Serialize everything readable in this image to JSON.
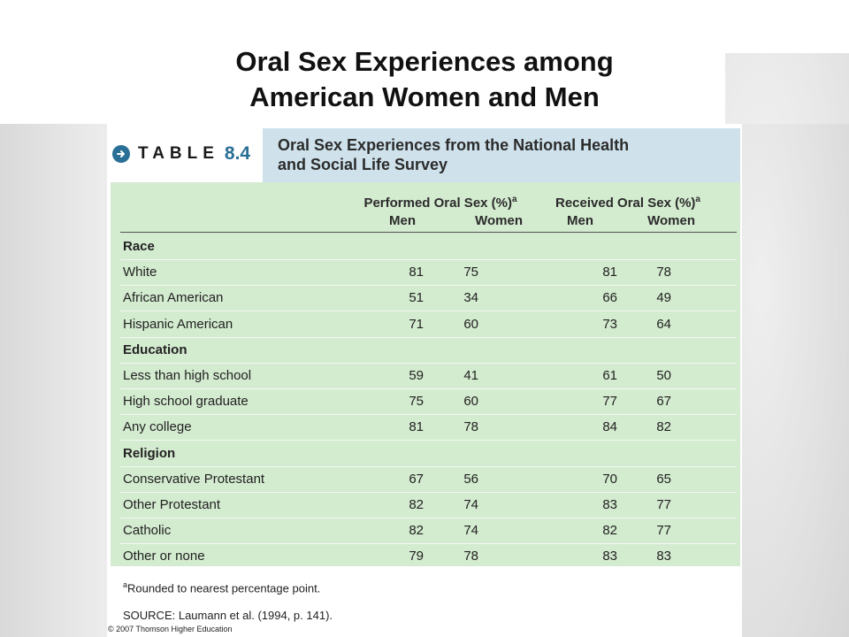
{
  "slide": {
    "title_line1": "Oral Sex Experiences among",
    "title_line2": "American Women and Men"
  },
  "table": {
    "label_word": "TABLE",
    "label_number": "8.4",
    "title_line1": "Oral Sex Experiences from the National Health",
    "title_line2": "and Social Life Survey",
    "groups": [
      {
        "label": "Performed Oral Sex (%)",
        "superscript": "a",
        "sub": [
          "Men",
          "Women"
        ]
      },
      {
        "label": "Received Oral Sex (%)",
        "superscript": "a",
        "sub": [
          "Men",
          "Women"
        ]
      }
    ],
    "rows": [
      {
        "label": "Race",
        "section": true
      },
      {
        "label": "White",
        "values": [
          "81",
          "75",
          "81",
          "78"
        ]
      },
      {
        "label": "African American",
        "values": [
          "51",
          "34",
          "66",
          "49"
        ]
      },
      {
        "label": "Hispanic American",
        "values": [
          "71",
          "60",
          "73",
          "64"
        ]
      },
      {
        "label": "Education",
        "section": true
      },
      {
        "label": "Less than high school",
        "values": [
          "59",
          "41",
          "61",
          "50"
        ]
      },
      {
        "label": "High school graduate",
        "values": [
          "75",
          "60",
          "77",
          "67"
        ]
      },
      {
        "label": "Any college",
        "values": [
          "81",
          "78",
          "84",
          "82"
        ]
      },
      {
        "label": "Religion",
        "section": true
      },
      {
        "label": "Conservative Protestant",
        "values": [
          "67",
          "56",
          "70",
          "65"
        ]
      },
      {
        "label": "Other Protestant",
        "values": [
          "82",
          "74",
          "83",
          "77"
        ]
      },
      {
        "label": "Catholic",
        "values": [
          "82",
          "74",
          "82",
          "77"
        ]
      },
      {
        "label": "Other or none",
        "values": [
          "79",
          "78",
          "83",
          "83"
        ]
      }
    ],
    "footnote_mark": "a",
    "footnote_text": "Rounded to nearest percentage point.",
    "source": "SOURCE: Laumann et al. (1994, p. 141)."
  },
  "copyright": "© 2007 Thomson Higher Education",
  "colors": {
    "header_bg": "#cfe2ec",
    "body_bg": "#d3ebcf",
    "accent": "#2a6f96"
  }
}
